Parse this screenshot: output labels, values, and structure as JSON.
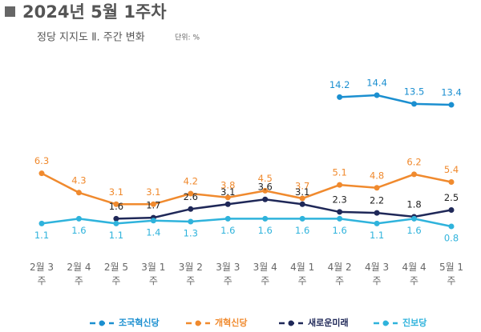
{
  "chart_data": {
    "type": "line",
    "title": "2024년 5월 1주차",
    "subtitle": "정당 지지도 Ⅱ. 주간 변화",
    "unit": "단위: %",
    "categories": [
      "2월 3주",
      "2월 4주",
      "2월 5주",
      "3월 1주",
      "3월 2주",
      "3월 3주",
      "3월 4주",
      "4월 1주",
      "4월 2주",
      "4월 3주",
      "4월 4주",
      "5월 1주"
    ],
    "series": [
      {
        "name": "조국혁신당",
        "color": "#1b8fd0",
        "label_position": "above",
        "values": [
          null,
          null,
          null,
          null,
          null,
          null,
          null,
          null,
          14.2,
          14.4,
          13.5,
          13.4
        ]
      },
      {
        "name": "개혁신당",
        "color": "#f08a2e",
        "label_position": "above",
        "values": [
          6.3,
          4.3,
          3.1,
          3.1,
          4.2,
          3.8,
          4.5,
          3.7,
          5.1,
          4.8,
          6.2,
          5.4
        ]
      },
      {
        "name": "새로운미래",
        "color": "#1f2858",
        "label_position": "above",
        "values": [
          null,
          null,
          1.6,
          1.7,
          2.6,
          3.1,
          3.6,
          3.1,
          2.3,
          2.2,
          1.8,
          2.5
        ]
      },
      {
        "name": "진보당",
        "color": "#2fb3dc",
        "label_position": "below",
        "values": [
          1.1,
          1.6,
          1.1,
          1.4,
          1.3,
          1.6,
          1.6,
          1.6,
          1.6,
          1.1,
          1.6,
          0.8
        ]
      }
    ]
  }
}
